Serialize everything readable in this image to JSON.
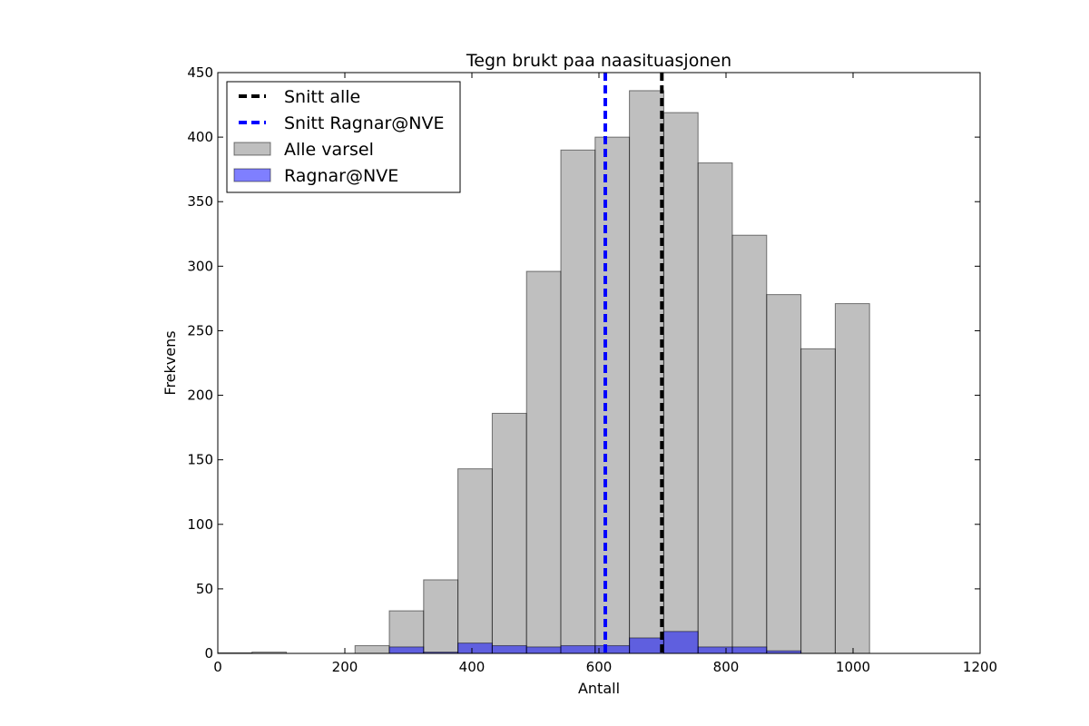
{
  "chart_data": {
    "type": "bar",
    "subtype": "overlaid-histogram",
    "title": "Tegn brukt paa naasituasjonen",
    "xlabel": "Antall",
    "ylabel": "Frekvens",
    "xlim": [
      0,
      1200
    ],
    "ylim": [
      0,
      450
    ],
    "xticks": [
      0,
      200,
      400,
      600,
      800,
      1000,
      1200
    ],
    "yticks": [
      0,
      50,
      100,
      150,
      200,
      250,
      300,
      350,
      400,
      450
    ],
    "grid": false,
    "legend_position": "top-left",
    "series": [
      {
        "name": "Alle varsel",
        "color": "#808080",
        "bins": [
          {
            "x0": 0,
            "x1": 54,
            "value": 0.5
          },
          {
            "x0": 54,
            "x1": 108,
            "value": 1
          },
          {
            "x0": 108,
            "x1": 162,
            "value": 0
          },
          {
            "x0": 162,
            "x1": 216,
            "value": 0
          },
          {
            "x0": 216,
            "x1": 270,
            "value": 6
          },
          {
            "x0": 270,
            "x1": 324,
            "value": 33
          },
          {
            "x0": 324,
            "x1": 378,
            "value": 57
          },
          {
            "x0": 378,
            "x1": 432,
            "value": 143
          },
          {
            "x0": 432,
            "x1": 486,
            "value": 186
          },
          {
            "x0": 486,
            "x1": 540,
            "value": 296
          },
          {
            "x0": 540,
            "x1": 594,
            "value": 390
          },
          {
            "x0": 594,
            "x1": 648,
            "value": 400
          },
          {
            "x0": 648,
            "x1": 702,
            "value": 436
          },
          {
            "x0": 702,
            "x1": 756,
            "value": 419
          },
          {
            "x0": 756,
            "x1": 810,
            "value": 380
          },
          {
            "x0": 810,
            "x1": 864,
            "value": 324
          },
          {
            "x0": 864,
            "x1": 918,
            "value": 278
          },
          {
            "x0": 918,
            "x1": 972,
            "value": 236
          },
          {
            "x0": 972,
            "x1": 1026,
            "value": 271
          }
        ]
      },
      {
        "name": "Ragnar@NVE",
        "color": "#0000ff",
        "bins": [
          {
            "x0": 270,
            "x1": 324,
            "value": 5
          },
          {
            "x0": 324,
            "x1": 378,
            "value": 1
          },
          {
            "x0": 378,
            "x1": 432,
            "value": 8
          },
          {
            "x0": 432,
            "x1": 486,
            "value": 6
          },
          {
            "x0": 486,
            "x1": 540,
            "value": 5
          },
          {
            "x0": 540,
            "x1": 594,
            "value": 6
          },
          {
            "x0": 594,
            "x1": 648,
            "value": 6
          },
          {
            "x0": 648,
            "x1": 702,
            "value": 12
          },
          {
            "x0": 702,
            "x1": 756,
            "value": 17
          },
          {
            "x0": 756,
            "x1": 810,
            "value": 5
          },
          {
            "x0": 810,
            "x1": 864,
            "value": 5
          },
          {
            "x0": 864,
            "x1": 918,
            "value": 2
          }
        ]
      }
    ],
    "reference_lines": [
      {
        "name": "Snitt alle",
        "x": 699,
        "color": "#000000",
        "style": "dashed"
      },
      {
        "name": "Snitt Ragnar@NVE",
        "x": 610,
        "color": "#0000ff",
        "style": "dashed"
      }
    ],
    "legend": [
      {
        "label": "Snitt alle",
        "kind": "line",
        "color": "#000000"
      },
      {
        "label": "Snitt Ragnar@NVE",
        "kind": "line",
        "color": "#0000ff"
      },
      {
        "label": "Alle varsel",
        "kind": "patch",
        "color": "#808080"
      },
      {
        "label": "Ragnar@NVE",
        "kind": "patch",
        "color": "#0000ff"
      }
    ]
  }
}
